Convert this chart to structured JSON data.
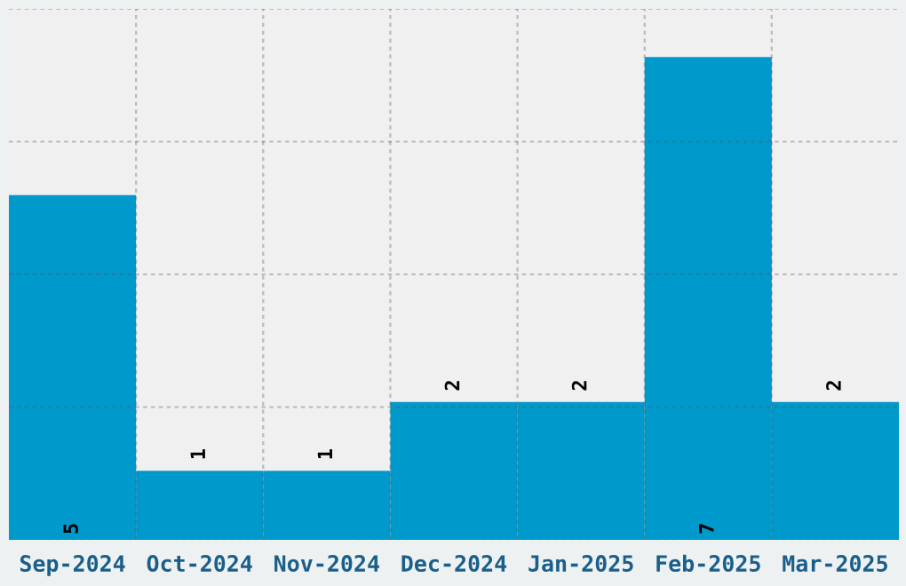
{
  "chart_data": {
    "type": "bar",
    "categories": [
      "Sep-2024",
      "Oct-2024",
      "Nov-2024",
      "Dec-2024",
      "Jan-2025",
      "Feb-2025",
      "Mar-2025"
    ],
    "values": [
      5,
      1,
      1,
      2,
      2,
      7,
      2
    ],
    "color": "#0099cc",
    "ylim": [
      0,
      7.7
    ],
    "yticks": [
      {
        "value": 0,
        "label": null
      },
      {
        "value": 1.925,
        "label": null
      },
      {
        "value": 3.85,
        "label": null
      },
      {
        "value": 5.775,
        "label": null
      },
      {
        "value": 7.7,
        "label": null
      }
    ],
    "grid": true,
    "data_labels": true,
    "tick_labels": "x"
  }
}
